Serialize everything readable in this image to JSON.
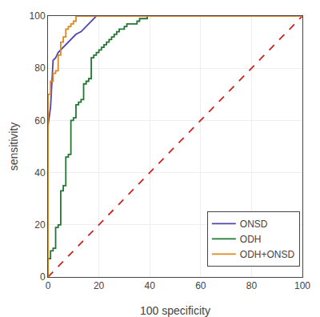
{
  "chart_data": {
    "type": "line",
    "xlabel": "100 specificity",
    "ylabel": "sensitivity",
    "xlim": [
      0,
      100
    ],
    "ylim": [
      0,
      100
    ],
    "xticks": [
      0,
      20,
      40,
      60,
      80,
      100
    ],
    "yticks": [
      0,
      20,
      40,
      60,
      80,
      100
    ],
    "grid": true,
    "legend": "lower right",
    "series": [
      {
        "color": "#cc2222",
        "line_style": "dashed",
        "x": [
          0,
          100
        ],
        "values": [
          0,
          100
        ]
      },
      {
        "name": "ONSD",
        "color": "#5544aa",
        "x": [
          0,
          0,
          1,
          1,
          2,
          2,
          3,
          3,
          4,
          4,
          5,
          5,
          6,
          6,
          7,
          7,
          8,
          8,
          9,
          9,
          10,
          10,
          11,
          11,
          13,
          13,
          14,
          14,
          16,
          16,
          17,
          17,
          19,
          19,
          22,
          22,
          100
        ],
        "values": [
          58,
          58,
          65,
          65,
          83,
          83,
          84,
          84,
          86,
          86,
          87,
          87,
          88,
          88,
          89,
          89,
          90,
          90,
          91,
          91,
          92,
          92,
          93,
          93,
          94,
          94,
          95,
          95,
          97,
          97,
          98,
          98,
          100,
          100,
          100,
          100,
          100
        ]
      },
      {
        "name": "ODH",
        "color": "#227733",
        "x": [
          0,
          0,
          1,
          1,
          2,
          2,
          3,
          3,
          4,
          4,
          5,
          5,
          6,
          6,
          7,
          7,
          8,
          8,
          9,
          9,
          10,
          10,
          11,
          11,
          12,
          12,
          13,
          13,
          14,
          14,
          15,
          15,
          16,
          16,
          17,
          17,
          18,
          18,
          19,
          19,
          20,
          20,
          21,
          21,
          22,
          22,
          23,
          23,
          24,
          24,
          25,
          25,
          26,
          26,
          27,
          27,
          28,
          28,
          30,
          30,
          31,
          31,
          35,
          35,
          36,
          36,
          39,
          39,
          40,
          40,
          42,
          42,
          43,
          43,
          44,
          44,
          45,
          45,
          46,
          46,
          47,
          47,
          48,
          48,
          49,
          49,
          50,
          50,
          51,
          51,
          52,
          52,
          53,
          53,
          54,
          54,
          55,
          55,
          56,
          56,
          57,
          57,
          58,
          58,
          59,
          59,
          60,
          60,
          100
        ],
        "values": [
          0,
          7,
          7,
          10,
          10,
          11,
          11,
          19,
          19,
          20,
          20,
          33,
          33,
          35,
          35,
          46,
          46,
          47,
          47,
          60,
          60,
          61,
          61,
          66,
          66,
          67,
          67,
          68,
          68,
          74,
          74,
          75,
          75,
          76,
          76,
          84,
          84,
          85,
          85,
          86,
          86,
          87,
          87,
          88,
          88,
          89,
          89,
          90,
          90,
          91,
          91,
          92,
          92,
          93,
          93,
          94,
          94,
          95,
          95,
          96,
          96,
          97,
          97,
          98,
          98,
          99,
          99,
          100,
          100,
          100,
          100,
          100,
          100,
          100,
          100,
          100,
          100,
          100,
          100,
          100,
          100,
          100,
          100,
          100,
          100,
          100,
          100,
          100,
          100,
          100,
          100,
          100,
          100,
          100,
          100,
          100,
          100,
          100,
          100,
          100,
          100,
          100,
          100,
          100,
          100,
          100,
          100,
          100,
          100
        ]
      },
      {
        "name": "ODH+ONSD",
        "color": "#dd8822",
        "x": [
          0,
          0,
          1,
          1,
          2,
          2,
          3,
          3,
          4,
          4,
          5,
          5,
          6,
          6,
          7,
          7,
          8,
          8,
          9,
          9,
          10,
          10,
          11,
          11,
          12,
          12,
          13,
          13,
          100
        ],
        "values": [
          0,
          70,
          70,
          75,
          75,
          78,
          78,
          79,
          79,
          85,
          85,
          90,
          90,
          92,
          92,
          95,
          95,
          96,
          96,
          97,
          97,
          98,
          98,
          100,
          100,
          100,
          100,
          100,
          100
        ]
      }
    ]
  }
}
